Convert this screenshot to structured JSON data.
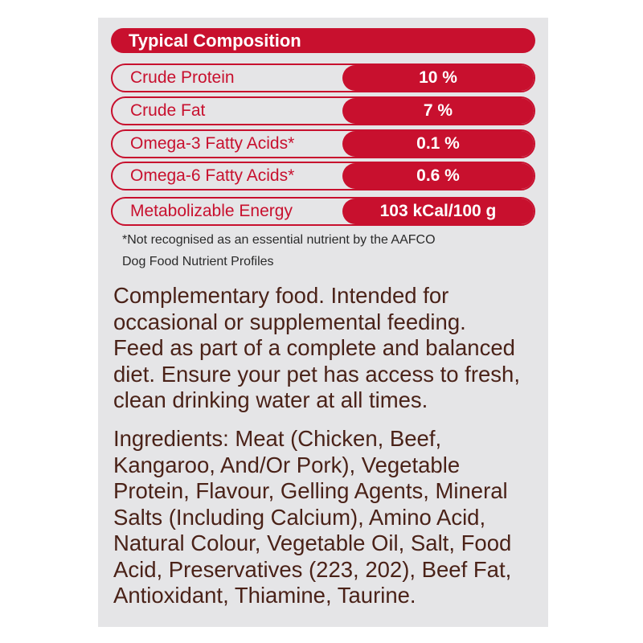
{
  "header": {
    "title": "Typical Composition"
  },
  "table": {
    "rows": [
      [
        "Crude Protein",
        "10 %"
      ],
      [
        "Crude Fat",
        "7 %"
      ],
      [
        "Omega-3 Fatty Acids*",
        "0.1 %"
      ],
      [
        "Omega-6 Fatty Acids*",
        "0.6 %"
      ],
      [
        "Metabolizable Energy",
        "103 kCal/100 g"
      ]
    ]
  },
  "footnote": [
    "*Not recognised as an essential nutrient by the AAFCO",
    "Dog Food Nutrient Profiles"
  ],
  "description": [
    "Complementary food. Intended for",
    "occasional or supplemental feeding.",
    "Feed as part of a complete and balanced",
    "diet. Ensure your pet has access to fresh,",
    "clean drinking water at all times."
  ],
  "ingredients": [
    "Ingredients: Meat (Chicken, Beef,",
    "Kangaroo, And/Or Pork), Vegetable",
    "Protein, Flavour, Gelling Agents, Mineral",
    "Salts (Including Calcium), Amino Acid,",
    "Natural Colour, Vegetable Oil, Salt, Food",
    "Acid, Preservatives (223, 202), Beef Fat,",
    "Antioxidant, Thiamine, Taurine."
  ]
}
